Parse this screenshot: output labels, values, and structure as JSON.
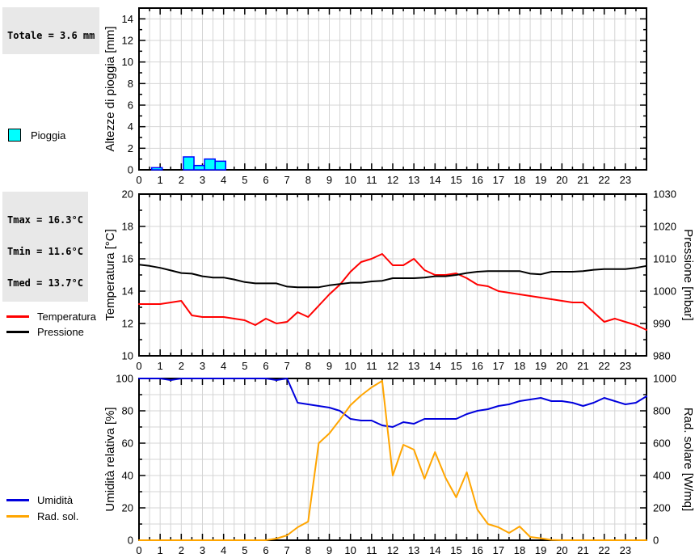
{
  "left_column": {
    "rain_total": "Totale = 3.6 mm",
    "rain_legend": [
      {
        "label": "Pioggia",
        "fill": "#00ffff",
        "border": "#000000"
      }
    ],
    "temp_stats": [
      "Tmax = 16.3°C",
      "Tmin = 11.6°C",
      "Tmed = 13.7°C"
    ],
    "temp_legend": [
      {
        "label": "Temperatura",
        "color": "#ff0000"
      },
      {
        "label": "Pressione",
        "color": "#000000"
      }
    ],
    "hum_legend": [
      {
        "label": "Umidità",
        "color": "#0000dd"
      },
      {
        "label": "Rad. sol.",
        "color": "#ffa500"
      }
    ]
  },
  "chart_data": [
    {
      "type": "bar",
      "panel": "rain",
      "ylabel": "Altezze di pioggia [mm]",
      "xlim": [
        0,
        24
      ],
      "x_ticks": [
        0,
        1,
        2,
        3,
        4,
        5,
        6,
        7,
        8,
        9,
        10,
        11,
        12,
        13,
        14,
        15,
        16,
        17,
        18,
        19,
        20,
        21,
        22,
        23
      ],
      "x_minor_step": 0.5,
      "ylim": [
        0,
        15
      ],
      "y_ticks": [
        0,
        2,
        4,
        6,
        8,
        10,
        12,
        14
      ],
      "y_minor_step": 1,
      "grid_rows": [
        2,
        4,
        6,
        8,
        10,
        12,
        14
      ],
      "total_mm": 3.6,
      "bar_width_hours": 0.5,
      "bar_fill": "#00ffff",
      "bar_border": "#0000ff",
      "bars": [
        {
          "hour": 0.5,
          "mm": 0.2
        },
        {
          "hour": 2.0,
          "mm": 1.2
        },
        {
          "hour": 2.5,
          "mm": 0.4
        },
        {
          "hour": 3.0,
          "mm": 1.0
        },
        {
          "hour": 3.5,
          "mm": 0.8
        }
      ]
    },
    {
      "type": "line",
      "panel": "temperature-pressure",
      "ylabel": "Temperatura [°C]",
      "y2label": "Pressione [mbar]",
      "xlim": [
        0,
        24
      ],
      "x_ticks": [
        0,
        1,
        2,
        3,
        4,
        5,
        6,
        7,
        8,
        9,
        10,
        11,
        12,
        13,
        14,
        15,
        16,
        17,
        18,
        19,
        20,
        21,
        22,
        23
      ],
      "x_minor_step": 0.5,
      "x_step": 0.5,
      "ylim": [
        10,
        20
      ],
      "y_ticks": [
        10,
        12,
        14,
        16,
        18,
        20
      ],
      "y_minor_step": 1,
      "grid_rows": [
        12,
        14,
        16,
        18
      ],
      "y2lim": [
        980,
        1030
      ],
      "y2_ticks": [
        980,
        990,
        1000,
        1010,
        1020,
        1030
      ],
      "y2_minor_step": 5,
      "tmax_c": 16.3,
      "tmin_c": 11.6,
      "tmed_c": 13.7,
      "series": [
        {
          "name": "Temperatura",
          "axis": "left",
          "color": "#ff0000",
          "values": [
            13.2,
            13.2,
            13.2,
            13.3,
            13.4,
            12.5,
            12.4,
            12.4,
            12.4,
            12.3,
            12.2,
            11.9,
            12.3,
            12.0,
            12.1,
            12.7,
            12.4,
            13.1,
            13.8,
            14.4,
            15.2,
            15.8,
            16.0,
            16.3,
            15.6,
            15.6,
            16.0,
            15.3,
            15.0,
            15.0,
            15.1,
            14.8,
            14.4,
            14.3,
            14.0,
            13.9,
            13.8,
            13.7,
            13.6,
            13.5,
            13.4,
            13.3,
            13.3,
            12.7,
            12.1,
            12.3,
            12.1,
            11.9,
            11.6
          ]
        },
        {
          "name": "Pressione",
          "axis": "right",
          "color": "#000000",
          "values": [
            1008.2,
            1007.8,
            1007.2,
            1006.4,
            1005.6,
            1005.4,
            1004.6,
            1004.2,
            1004.2,
            1003.6,
            1002.8,
            1002.4,
            1002.4,
            1002.4,
            1001.4,
            1001.2,
            1001.2,
            1001.2,
            1001.8,
            1002.2,
            1002.6,
            1002.6,
            1003.0,
            1003.2,
            1004.0,
            1004.0,
            1004.0,
            1004.2,
            1004.6,
            1004.6,
            1005.0,
            1005.6,
            1006.0,
            1006.2,
            1006.2,
            1006.2,
            1006.2,
            1005.4,
            1005.2,
            1006.0,
            1006.0,
            1006.0,
            1006.2,
            1006.6,
            1006.8,
            1006.8,
            1006.8,
            1007.2,
            1007.8
          ]
        }
      ]
    },
    {
      "type": "line",
      "panel": "humidity-radiation",
      "ylabel": "Umidità relativa [%]",
      "y2label": "Rad. solare [W/mq]",
      "xlim": [
        0,
        24
      ],
      "x_ticks": [
        0,
        1,
        2,
        3,
        4,
        5,
        6,
        7,
        8,
        9,
        10,
        11,
        12,
        13,
        14,
        15,
        16,
        17,
        18,
        19,
        20,
        21,
        22,
        23
      ],
      "x_minor_step": 0.5,
      "x_step": 0.5,
      "ylim": [
        0,
        100
      ],
      "y_ticks": [
        0,
        20,
        40,
        60,
        80,
        100
      ],
      "y_minor_step": 10,
      "grid_rows": [
        10,
        20,
        30,
        40,
        50,
        60,
        70,
        80,
        90
      ],
      "y2lim": [
        0,
        1000
      ],
      "y2_ticks": [
        0,
        200,
        400,
        600,
        800,
        1000
      ],
      "y2_minor_step": 100,
      "series": [
        {
          "name": "Umidità",
          "axis": "left",
          "color": "#0000dd",
          "values": [
            100,
            100,
            100,
            99,
            100,
            100,
            100,
            100,
            100,
            100,
            100,
            100,
            100,
            99,
            100,
            85,
            84,
            83,
            82,
            80,
            75,
            74,
            74,
            71,
            70,
            73,
            72,
            75,
            75,
            75,
            75,
            78,
            80,
            81,
            83,
            84,
            86,
            87,
            88,
            86,
            86,
            85,
            83,
            85,
            88,
            86,
            84,
            85,
            89
          ]
        },
        {
          "name": "Rad. sol.",
          "axis": "right",
          "color": "#ffa500",
          "values": [
            0,
            0,
            0,
            0,
            0,
            0,
            0,
            0,
            0,
            0,
            0,
            0,
            0,
            10,
            30,
            80,
            115,
            600,
            660,
            745,
            835,
            895,
            945,
            985,
            400,
            590,
            560,
            380,
            545,
            385,
            265,
            420,
            190,
            100,
            80,
            45,
            85,
            20,
            12,
            2,
            0,
            0,
            0,
            0,
            0,
            0,
            0,
            0,
            0
          ]
        }
      ]
    }
  ]
}
